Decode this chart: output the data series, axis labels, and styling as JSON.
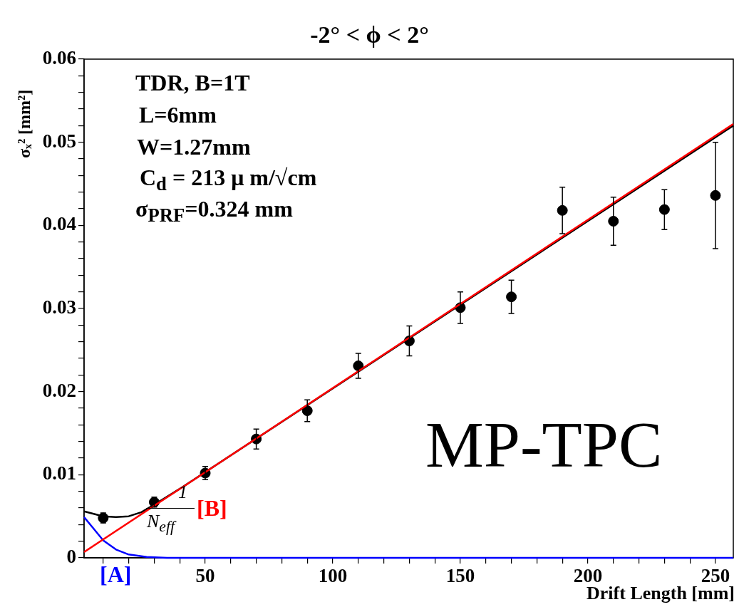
{
  "chart_data": {
    "type": "scatter",
    "title": "-2° < ϕ < 2°",
    "xlabel": "Drift Length [mm]",
    "ylabel": "σₓ² [mm²]",
    "xlim": [
      2.5,
      257
    ],
    "ylim": [
      0,
      0.06
    ],
    "xticks": [
      {
        "value": 10,
        "label": null
      },
      {
        "value": 20,
        "label": null
      },
      {
        "value": 30,
        "label": null
      },
      {
        "value": 40,
        "label": null
      },
      50,
      {
        "value": 60,
        "label": null
      },
      {
        "value": 70,
        "label": null
      },
      {
        "value": 80,
        "label": null
      },
      {
        "value": 90,
        "label": null
      },
      100,
      {
        "value": 110,
        "label": null
      },
      {
        "value": 120,
        "label": null
      },
      {
        "value": 130,
        "label": null
      },
      {
        "value": 140,
        "label": null
      },
      150,
      {
        "value": 160,
        "label": null
      },
      {
        "value": 170,
        "label": null
      },
      {
        "value": 180,
        "label": null
      },
      {
        "value": 190,
        "label": null
      },
      200,
      {
        "value": 210,
        "label": null
      },
      {
        "value": 220,
        "label": null
      },
      {
        "value": 230,
        "label": null
      },
      {
        "value": 240,
        "label": null
      },
      250
    ],
    "yticks": [
      0,
      {
        "value": 0.002,
        "label": null
      },
      {
        "value": 0.004,
        "label": null
      },
      {
        "value": 0.006,
        "label": null
      },
      {
        "value": 0.008,
        "label": null
      },
      0.01,
      {
        "value": 0.012,
        "label": null
      },
      {
        "value": 0.014,
        "label": null
      },
      {
        "value": 0.016,
        "label": null
      },
      {
        "value": 0.018,
        "label": null
      },
      0.02,
      {
        "value": 0.022,
        "label": null
      },
      {
        "value": 0.024,
        "label": null
      },
      {
        "value": 0.026,
        "label": null
      },
      {
        "value": 0.028,
        "label": null
      },
      0.03,
      {
        "value": 0.032,
        "label": null
      },
      {
        "value": 0.034,
        "label": null
      },
      {
        "value": 0.036,
        "label": null
      },
      {
        "value": 0.038,
        "label": null
      },
      0.04,
      {
        "value": 0.042,
        "label": null
      },
      {
        "value": 0.044,
        "label": null
      },
      {
        "value": 0.046,
        "label": null
      },
      {
        "value": 0.048,
        "label": null
      },
      0.05,
      {
        "value": 0.052,
        "label": null
      },
      {
        "value": 0.054,
        "label": null
      },
      {
        "value": 0.056,
        "label": null
      },
      {
        "value": 0.058,
        "label": null
      },
      0.06
    ],
    "grid": false,
    "legend": false,
    "marker": "circle",
    "series": [
      {
        "type": "line",
        "color": "#ff0000",
        "marker": "none",
        "x": [
          2.5,
          257
        ],
        "values": [
          0.0007,
          0.0522
        ]
      },
      {
        "type": "line",
        "color": "#0000ff",
        "marker": "none",
        "x": [
          2.5,
          6,
          10,
          15,
          20,
          27,
          35,
          257
        ],
        "values": [
          0.0049,
          0.0036,
          0.0021,
          0.001,
          0.0004,
          0.0001,
          0,
          0
        ]
      },
      {
        "type": "line",
        "color": "#000000",
        "marker": "none",
        "x": [
          2.5,
          10,
          15,
          20,
          25,
          30,
          40,
          257
        ],
        "values": [
          0.0056,
          0.005,
          0.0049,
          0.005,
          0.0055,
          0.0064,
          0.0083,
          0.052
        ]
      },
      {
        "color": "#000000",
        "x": [
          10,
          30,
          50,
          70,
          90,
          110,
          130,
          150,
          170,
          190,
          210,
          230,
          250
        ],
        "values": [
          0.0048,
          0.0067,
          0.0102,
          0.0143,
          0.0177,
          0.0231,
          0.0261,
          0.0301,
          0.0314,
          0.0418,
          0.0405,
          0.0419,
          0.0436
        ],
        "errors": [
          0.0006,
          0.0006,
          0.0008,
          0.0012,
          0.0013,
          0.0015,
          0.0018,
          0.0019,
          0.002,
          0.0028,
          0.0029,
          0.0024,
          0.0064
        ]
      }
    ],
    "annotations": [
      "TDR, B=1T",
      "L=6mm",
      "W=1.27mm",
      "C$_{d}$ = 213 μ m/√cm",
      "σ$_{PRF}$=0.324 mm",
      "MP-TPC",
      "[A]",
      "1",
      "N$_{eff}$",
      "[B]"
    ]
  }
}
